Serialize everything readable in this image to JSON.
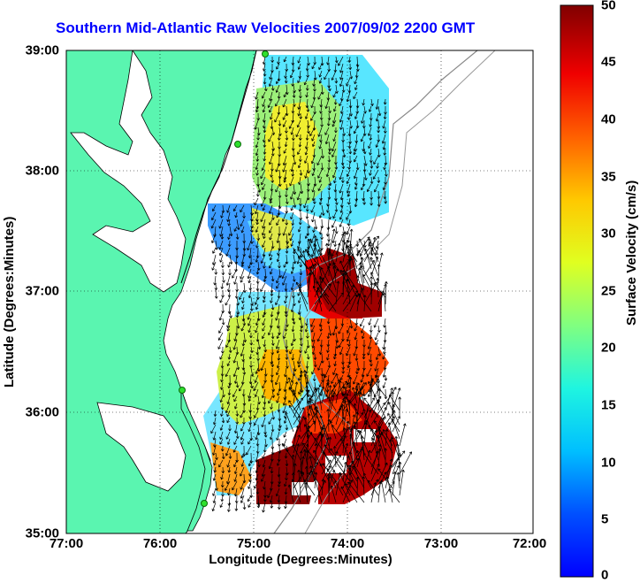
{
  "title": "Southern Mid-Atlantic Raw Velocities 2007/09/02 2200 GMT",
  "xlabel": "Longitude (Degrees:Minutes)",
  "ylabel": "Latitude (Degrees:Minutes)",
  "colorbar_label": "Surface Velocity (cm/s)",
  "x_ticks": [
    "77:00",
    "76:00",
    "75:00",
    "74:00",
    "73:00",
    "72:00"
  ],
  "y_ticks": [
    "39:00",
    "38:00",
    "37:00",
    "36:00",
    "35:00"
  ],
  "colorbar_ticks": [
    "50",
    "45",
    "40",
    "35",
    "30",
    "25",
    "20",
    "15",
    "10",
    "5",
    "0"
  ],
  "colors": {
    "land": "#5af5b0",
    "title": "#0000ff",
    "frame": "#000000"
  },
  "map": {
    "lon_range": [
      -77,
      -72
    ],
    "lat_range": [
      35,
      39
    ],
    "colorbar_range": [
      0,
      50
    ],
    "colormap": "jet",
    "grid": "dotted"
  }
}
